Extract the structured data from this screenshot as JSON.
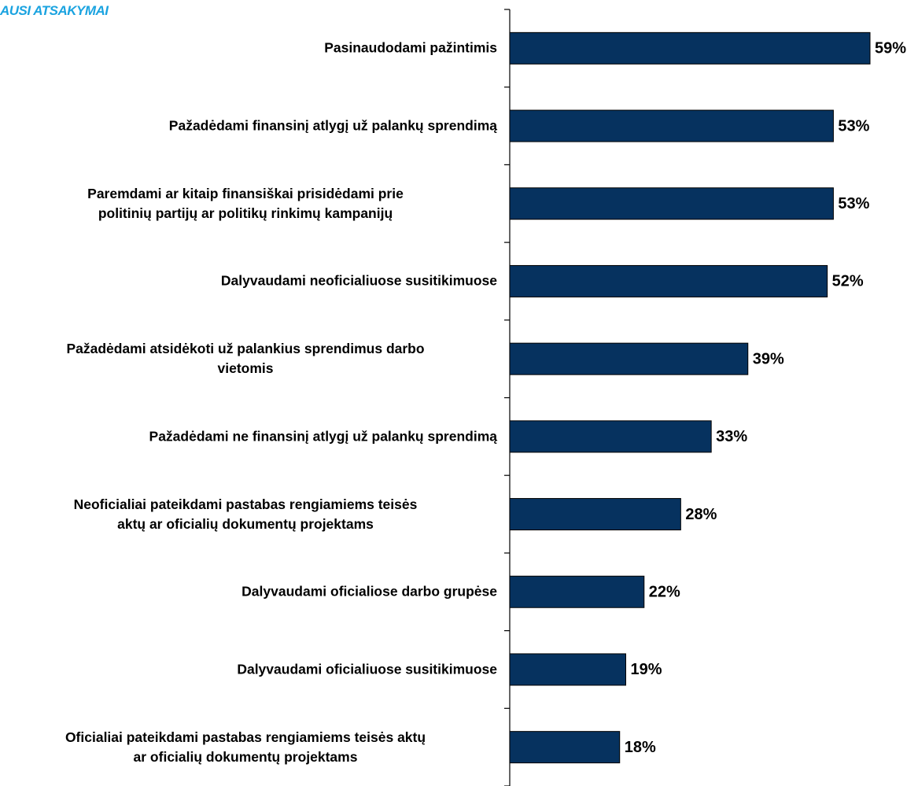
{
  "chart_data": {
    "type": "bar",
    "orientation": "horizontal",
    "title": "AUSI ATSAKYMAI",
    "categories": [
      "Pasinaudodami pažintimis",
      "Pažadėdami finansinį atlygį už palankų sprendimą",
      "Paremdami ar kitaip finansiškai prisidėdami prie\npolitinių partijų ar politikų rinkimų kampanijų",
      "Dalyvaudami neoficialiuose susitikimuose",
      "Pažadėdami atsidėkoti už palankius sprendimus darbo\nvietomis",
      "Pažadėdami ne finansinį atlygį už palankų sprendimą",
      "Neoficialiai pateikdami pastabas rengiamiems teisės\naktų ar oficialių dokumentų projektams",
      "Dalyvaudami oficialiose darbo grupėse",
      "Dalyvaudami oficialiuose susitikimuose",
      "Oficialiai pateikdami pastabas rengiamiems teisės aktų\nar oficialių dokumentų projektams"
    ],
    "values": [
      59,
      53,
      53,
      52,
      39,
      33,
      28,
      22,
      19,
      18
    ],
    "value_labels": [
      "59%",
      "53%",
      "53%",
      "52%",
      "39%",
      "33%",
      "28%",
      "22%",
      "19%",
      "18%"
    ],
    "color": "#06325f"
  }
}
